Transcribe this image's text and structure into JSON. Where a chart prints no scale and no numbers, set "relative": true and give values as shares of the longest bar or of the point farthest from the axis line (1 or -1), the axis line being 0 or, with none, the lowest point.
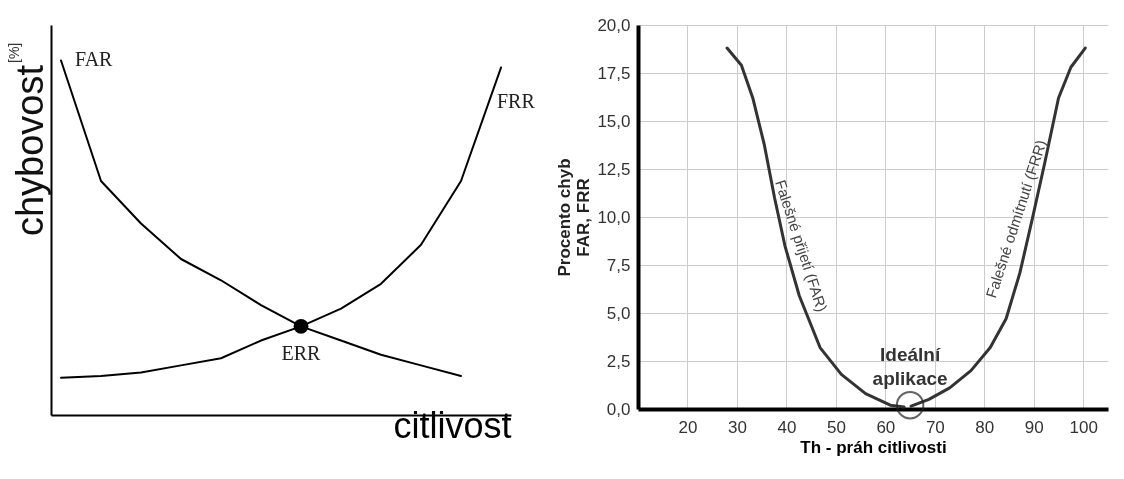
{
  "chart_data": [
    {
      "type": "line",
      "xlabel": "citlivost",
      "ylabel": "chybovost$^{[%]}$",
      "relative": true,
      "tick_labels": false,
      "categories": [
        null,
        null,
        null,
        null,
        null,
        null,
        null,
        null,
        null,
        null,
        null,
        null
      ],
      "series": [
        {
          "name": "FAR",
          "color": "#000000",
          "values": [
            1.0,
            0.66,
            0.54,
            0.44,
            0.38,
            0.31,
            0.25,
            0.21,
            0.17,
            0.14,
            0.11,
            null
          ]
        },
        {
          "name": "FRR",
          "color": "#000000",
          "values": [
            0.105,
            0.11,
            0.12,
            0.14,
            0.16,
            0.21,
            0.25,
            0.3,
            0.37,
            0.48,
            0.66,
            0.98
          ]
        }
      ],
      "annotations": [
        {
          "text": "ERR",
          "y": 0.25
        }
      ]
    },
    {
      "type": "line",
      "xlabel": "Th - práh citlivosti",
      "ylabel": "Procento chyb\nFAR, FRR",
      "grid": true,
      "xlim": [
        10,
        105
      ],
      "xticks": [
        20,
        30,
        40,
        50,
        60,
        70,
        80,
        90,
        100
      ],
      "ylim": [
        0,
        20
      ],
      "yticks": [
        {
          "value": 0,
          "label": "0,0"
        },
        {
          "value": 2.5,
          "label": "2,5"
        },
        {
          "value": 5,
          "label": "5,0"
        },
        {
          "value": 7.5,
          "label": "7,5"
        },
        {
          "value": 10,
          "label": "10,0"
        },
        {
          "value": 12.5,
          "label": "12,5"
        },
        {
          "value": 15,
          "label": "15,0"
        },
        {
          "value": 17.5,
          "label": "17,5"
        },
        {
          "value": 20,
          "label": "20,0"
        }
      ],
      "annotations": [
        {
          "text": "Ideální aplikace",
          "x": 65,
          "y": 0.2
        }
      ],
      "series": [
        {
          "name": "Falešné přijetí (FAR)",
          "color": "#333333",
          "x": [
            28,
            30.9,
            33.2,
            35.5,
            37.6,
            39.7,
            42.6,
            46.8,
            51.1,
            56,
            61,
            63.8
          ],
          "values": [
            18.8,
            17.9,
            16.2,
            13.8,
            11,
            8.5,
            5.9,
            3.2,
            1.8,
            0.8,
            0.2,
            0.1
          ]
        },
        {
          "name": "Falešné odmítnutí (FRR)",
          "color": "#333333",
          "x": [
            65.2,
            68.8,
            73,
            77.3,
            81.2,
            84.4,
            87.2,
            89.7,
            92.2,
            95,
            97.5,
            100.4
          ],
          "values": [
            0.15,
            0.5,
            1.1,
            2,
            3.2,
            4.7,
            7.1,
            9.9,
            12.8,
            16.2,
            17.8,
            18.8
          ]
        }
      ]
    }
  ]
}
